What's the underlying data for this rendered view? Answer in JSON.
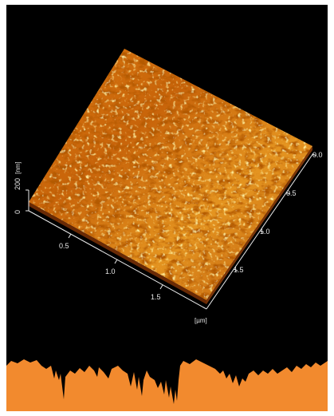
{
  "image": {
    "subject": "afm-surface-topography",
    "colors": {
      "background": "#000000",
      "surface_low": "#5a1a00",
      "surface_mid": "#c8640a",
      "surface_high": "#ffd84a",
      "profile": "#f28a2e",
      "axis": "#e8e8e8"
    }
  },
  "axes": {
    "z": {
      "ticks": [
        "0",
        "200"
      ],
      "unit": "[nm]"
    },
    "x": {
      "ticks": [
        "0.5",
        "1.0",
        "1.5"
      ],
      "unit": "[µm]"
    },
    "y": {
      "ticks": [
        "0.0",
        "0.5",
        "1.0",
        "1.5"
      ]
    }
  }
}
